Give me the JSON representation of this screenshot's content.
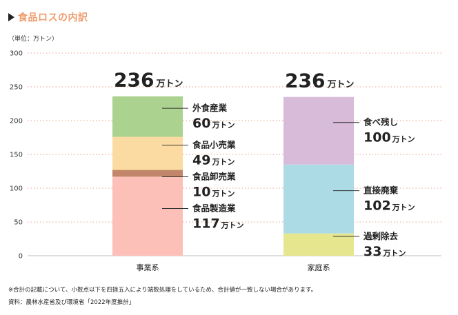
{
  "chart_title": "食品ロスの内訳",
  "unit_label": "（単位：万トン）",
  "notes": [
    "※合計の記載について、小数点以下を四捨五入により端数処理をしているため、合計値が一致しない場合があります。",
    "資料：農林水産省及び環境省「2022年度推計」"
  ],
  "chart_data": {
    "type": "bar",
    "stacked": true,
    "title": "食品ロスの内訳",
    "ylim": [
      0,
      300
    ],
    "yticks": [
      0,
      50,
      100,
      150,
      200,
      250,
      300
    ],
    "grid": true,
    "categories": [
      "事業系",
      "家庭系"
    ],
    "totals": [
      {
        "value": "236",
        "unit": "万トン"
      },
      {
        "value": "236",
        "unit": "万トン"
      }
    ],
    "stacks": [
      [
        {
          "name": "食品製造業",
          "value": 117,
          "unit": "万トン",
          "color": "#fcc0b9"
        },
        {
          "name": "食品卸売業",
          "value": 10,
          "unit": "万トン",
          "color": "#c2866a"
        },
        {
          "name": "食品小売業",
          "value": 49,
          "unit": "万トン",
          "color": "#fbdba1"
        },
        {
          "name": "外食産業",
          "value": 60,
          "unit": "万トン",
          "color": "#acd28f"
        }
      ],
      [
        {
          "name": "過剰除去",
          "value": 33,
          "unit": "万トン",
          "color": "#e6e68e"
        },
        {
          "name": "直接廃棄",
          "value": 102,
          "unit": "万トン",
          "color": "#acdbe6"
        },
        {
          "name": "食べ残し",
          "value": 100,
          "unit": "万トン",
          "color": "#d8bbd9"
        }
      ]
    ]
  }
}
